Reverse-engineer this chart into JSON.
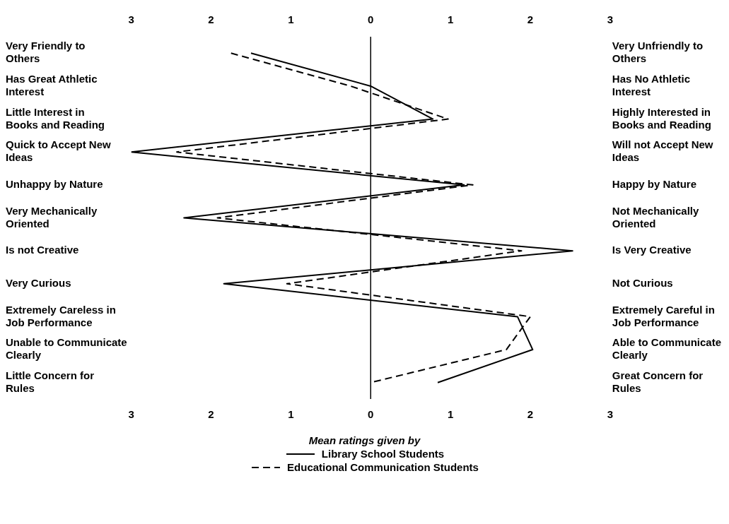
{
  "chart_data": {
    "type": "line",
    "orientation": "horizontal",
    "categories": [
      "Very Friendly to Others",
      "Has Great Athletic Interest",
      "Little Interest in Books and Reading",
      "Quick to Accept New Ideas",
      "Unhappy by Nature",
      "Very Mechanically Oriented",
      "Is not Creative",
      "Very Curious",
      "Extremely Careless in Job Performance",
      "Unable to Communicate Clearly",
      "Little Concern for Rules"
    ],
    "y2_categories": [
      "Very Unfriendly to Others",
      "Has No Athletic Interest",
      "Highly Interested in Books and Reading",
      "Will not Accept New Ideas",
      "Happy by Nature",
      "Not Mechanically Oriented",
      "Is Very Creative",
      "Not Curious",
      "Extremely Careful in Job Performance",
      "Able to Communicate Clearly",
      "Great Concern for Rules"
    ],
    "series": [
      {
        "name": "Library School Students",
        "color": "#000000",
        "line_style": "solid",
        "values": [
          -1.5,
          0,
          0.78,
          -3.0,
          1.17,
          -2.34,
          2.53,
          -1.84,
          1.84,
          2.03,
          0.84
        ]
      },
      {
        "name": "Educational Communication Students",
        "color": "#000000",
        "line_style": "dashed",
        "values": [
          -1.75,
          -0.25,
          0.97,
          -2.43,
          1.28,
          -1.92,
          1.89,
          -1.05,
          2.0,
          1.7,
          0
        ]
      }
    ],
    "xlim": [
      -3,
      3
    ],
    "xticks": [
      {
        "value": -3,
        "label": "3"
      },
      {
        "value": -2,
        "label": "2"
      },
      {
        "value": -1,
        "label": "1"
      },
      0,
      1,
      2,
      3
    ],
    "x2lim": [
      -3,
      3
    ],
    "x2ticks": [
      {
        "value": -3,
        "label": "3"
      },
      {
        "value": -2,
        "label": "2"
      },
      {
        "value": -1,
        "label": "1"
      },
      0,
      1,
      2,
      3
    ],
    "ref_lines": [
      {
        "axis": "x",
        "value": 0,
        "color": "#000000"
      }
    ],
    "legend": "bottom",
    "legend_title": "Mean ratings given by",
    "grid": false,
    "marker": "none"
  }
}
